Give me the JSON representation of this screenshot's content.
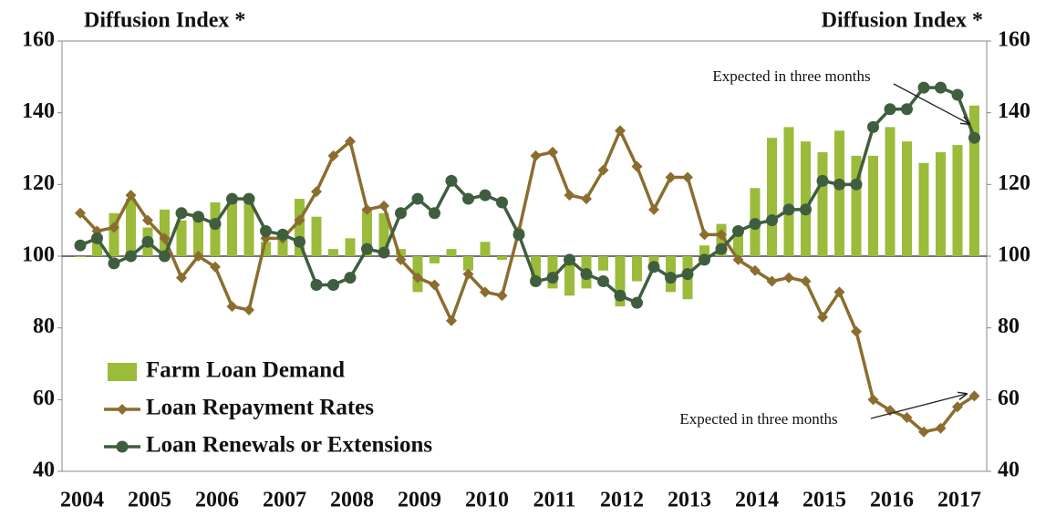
{
  "chart_data": {
    "type": "combo",
    "y_axis_title": "Diffusion Index *",
    "y2_axis_title": "Diffusion Index *",
    "categories": [
      "2004",
      null,
      null,
      null,
      "2005",
      null,
      null,
      null,
      "2006",
      null,
      null,
      null,
      "2007",
      null,
      null,
      null,
      "2008",
      null,
      null,
      null,
      "2009",
      null,
      null,
      null,
      "2010",
      null,
      null,
      null,
      "2011",
      null,
      null,
      null,
      "2012",
      null,
      null,
      null,
      "2013",
      null,
      null,
      null,
      "2014",
      null,
      null,
      null,
      "2015",
      null,
      null,
      null,
      "2016",
      null,
      null,
      null,
      "2017",
      null
    ],
    "baseline": 100,
    "series": [
      {
        "name": "Farm Loan Demand",
        "type": "bar",
        "color": "#9bbb3a",
        "values": [
          100,
          104,
          112,
          116,
          108,
          113,
          110,
          112,
          115,
          116,
          115,
          104,
          105,
          116,
          111,
          102,
          105,
          113,
          112,
          102,
          90,
          98,
          102,
          96,
          104,
          99,
          100,
          92,
          91,
          89,
          91,
          96,
          86,
          93,
          96,
          90,
          88,
          103,
          109,
          108,
          119,
          133,
          136,
          132,
          129,
          135,
          128,
          128,
          136,
          132,
          126,
          129,
          131,
          142
        ]
      },
      {
        "name": "Loan Repayment Rates",
        "type": "line",
        "marker": "diamond",
        "color": "#8b6d2f",
        "values": [
          112,
          107,
          108,
          117,
          110,
          105,
          94,
          100,
          97,
          86,
          85,
          105,
          105,
          110,
          118,
          128,
          132,
          113,
          114,
          99,
          94,
          92,
          82,
          95,
          90,
          89,
          107,
          128,
          129,
          117,
          116,
          124,
          135,
          125,
          113,
          122,
          122,
          106,
          106,
          99,
          96,
          93,
          94,
          93,
          83,
          90,
          79,
          60,
          57,
          55,
          51,
          52,
          58,
          61
        ]
      },
      {
        "name": "Loan Renewals or Extensions",
        "type": "line",
        "marker": "circle",
        "color": "#3f5e3f",
        "values": [
          103,
          105,
          98,
          100,
          104,
          100,
          112,
          111,
          109,
          116,
          116,
          107,
          106,
          104,
          92,
          92,
          94,
          102,
          101,
          112,
          116,
          112,
          121,
          116,
          117,
          115,
          106,
          93,
          94,
          99,
          95,
          93,
          89,
          87,
          97,
          94,
          95,
          99,
          102,
          107,
          109,
          110,
          113,
          113,
          121,
          120,
          120,
          136,
          141,
          141,
          147,
          147,
          145,
          133
        ]
      }
    ],
    "annotations": [
      "Expected in three months",
      "Expected in three months"
    ],
    "ylim": [
      40,
      160
    ],
    "yticks": [
      40,
      60,
      80,
      100,
      120,
      140,
      160
    ],
    "y2lim": [
      40,
      160
    ],
    "y2ticks": [
      40,
      60,
      80,
      100,
      120,
      140,
      160
    ],
    "legend": "lower left"
  }
}
